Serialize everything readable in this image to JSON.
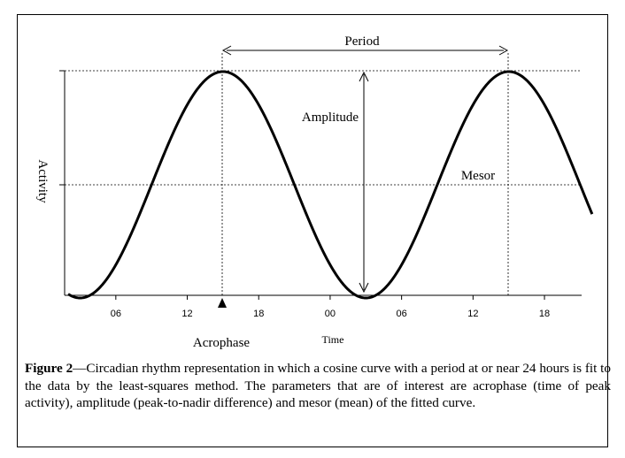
{
  "figure": {
    "caption_label": "Figure 2",
    "caption_text": "—Circadian rhythm representation in which a cosine curve with a period at or near 24 hours is fit to the data by the least-squares method. The parameters that are of interest are acrophase (time of peak activity), amplitude (peak-to-nadir difference) and mesor (mean) of the fitted curve."
  },
  "diagram": {
    "ylabel": "Activity",
    "xlabel": "Time",
    "period_label": "Period",
    "amplitude_label": "Amplitude",
    "mesor_label": "Mesor",
    "acrophase_label": "Acrophase",
    "ticks": [
      "06",
      "12",
      "18",
      "00",
      "06",
      "12",
      "18"
    ]
  },
  "chart_data": {
    "type": "line",
    "title": "",
    "xlabel": "Time",
    "ylabel": "Activity",
    "x_unit": "hours",
    "period_hours": 24,
    "acrophase_hour": 15,
    "mesor": 0,
    "amplitude": 1,
    "x_range": [
      2,
      46
    ],
    "tick_hours": [
      6,
      12,
      18,
      24,
      30,
      36,
      42
    ],
    "tick_labels": [
      "06",
      "12",
      "18",
      "00",
      "06",
      "12",
      "18"
    ]
  }
}
